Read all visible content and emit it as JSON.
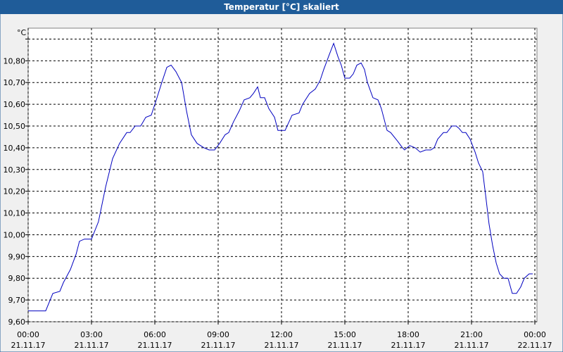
{
  "chart_data": {
    "type": "line",
    "title": "Temperatur [°C] skaliert",
    "y_label": "°C",
    "xlim": [
      0,
      24.1
    ],
    "ylim": [
      9.6,
      10.95
    ],
    "grid": true,
    "xticks": [
      {
        "value": 0,
        "label": "00:00"
      },
      {
        "value": 3,
        "label": "03:00"
      },
      {
        "value": 6,
        "label": "06:00"
      },
      {
        "value": 9,
        "label": "09:00"
      },
      {
        "value": 12,
        "label": "12:00"
      },
      {
        "value": 15,
        "label": "15:00"
      },
      {
        "value": 18,
        "label": "18:00"
      },
      {
        "value": 21,
        "label": "21:00"
      },
      {
        "value": 24,
        "label": "00:00"
      }
    ],
    "xtick_dates": [
      "21.11.17",
      "21.11.17",
      "21.11.17",
      "21.11.17",
      "21.11.17",
      "21.11.17",
      "21.11.17",
      "21.11.17",
      "22.11.17"
    ],
    "yticks": [
      {
        "value": 9.6,
        "label": "9,60"
      },
      {
        "value": 9.7,
        "label": "9,70"
      },
      {
        "value": 9.8,
        "label": "9,80"
      },
      {
        "value": 9.9,
        "label": "9,90"
      },
      {
        "value": 10.0,
        "label": "10,00"
      },
      {
        "value": 10.1,
        "label": "10,10"
      },
      {
        "value": 10.2,
        "label": "10,20"
      },
      {
        "value": 10.3,
        "label": "10,30"
      },
      {
        "value": 10.4,
        "label": "10,40"
      },
      {
        "value": 10.5,
        "label": "10,50"
      },
      {
        "value": 10.6,
        "label": "10,60"
      },
      {
        "value": 10.7,
        "label": "10,70"
      },
      {
        "value": 10.8,
        "label": "10,80"
      },
      {
        "value": 10.9,
        "label": null
      }
    ],
    "series": [
      {
        "color": "#0000c0",
        "x": [
          0,
          0.83,
          1.17,
          1.5,
          1.67,
          2,
          2.27,
          2.43,
          2.67,
          3,
          3.33,
          3.67,
          4,
          4.33,
          4.67,
          4.83,
          5.07,
          5.33,
          5.57,
          5.83,
          6.07,
          6.33,
          6.57,
          6.77,
          7,
          7.27,
          7.5,
          7.73,
          8,
          8.33,
          8.57,
          8.83,
          9.07,
          9.33,
          9.5,
          9.73,
          10,
          10.23,
          10.5,
          10.67,
          10.87,
          11,
          11.2,
          11.4,
          11.67,
          11.83,
          12.17,
          12.5,
          12.83,
          13,
          13.33,
          13.6,
          13.83,
          14,
          14.27,
          14.47,
          14.67,
          14.83,
          15,
          15.23,
          15.4,
          15.57,
          15.77,
          15.93,
          16.07,
          16.33,
          16.57,
          16.73,
          17,
          17.17,
          17.5,
          17.73,
          17.83,
          18.07,
          18.33,
          18.57,
          18.83,
          19.07,
          19.23,
          19.4,
          19.67,
          19.83,
          20.07,
          20.27,
          20.4,
          20.57,
          20.73,
          20.93,
          21.17,
          21.33,
          21.53,
          21.67,
          21.83,
          22,
          22.17,
          22.33,
          22.53,
          22.73,
          22.93,
          23.13,
          23.33,
          23.5,
          23.73,
          23.9
        ],
        "values": [
          9.65,
          9.65,
          9.73,
          9.74,
          9.78,
          9.84,
          9.91,
          9.97,
          9.98,
          9.98,
          10.06,
          10.22,
          10.35,
          10.42,
          10.47,
          10.47,
          10.5,
          10.5,
          10.54,
          10.55,
          10.62,
          10.7,
          10.77,
          10.78,
          10.75,
          10.7,
          10.57,
          10.46,
          10.42,
          10.4,
          10.39,
          10.39,
          10.42,
          10.46,
          10.47,
          10.52,
          10.57,
          10.62,
          10.63,
          10.65,
          10.68,
          10.63,
          10.63,
          10.58,
          10.54,
          10.48,
          10.48,
          10.55,
          10.56,
          10.6,
          10.65,
          10.67,
          10.71,
          10.76,
          10.83,
          10.88,
          10.82,
          10.78,
          10.72,
          10.72,
          10.74,
          10.78,
          10.79,
          10.76,
          10.7,
          10.63,
          10.62,
          10.58,
          10.48,
          10.47,
          10.43,
          10.4,
          10.39,
          10.41,
          10.4,
          10.38,
          10.39,
          10.39,
          10.4,
          10.44,
          10.47,
          10.47,
          10.5,
          10.5,
          10.49,
          10.47,
          10.47,
          10.44,
          10.38,
          10.33,
          10.29,
          10.18,
          10.05,
          9.95,
          9.87,
          9.82,
          9.8,
          9.8,
          9.73,
          9.73,
          9.76,
          9.8,
          9.82,
          9.82
        ]
      }
    ]
  }
}
